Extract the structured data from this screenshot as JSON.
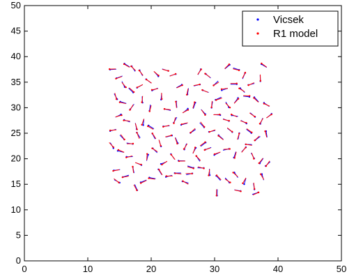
{
  "chart_data": {
    "type": "scatter",
    "title": "",
    "xlabel": "",
    "ylabel": "",
    "xlim": [
      0,
      50
    ],
    "ylim": [
      0,
      50
    ],
    "xticks": [
      0,
      10,
      20,
      30,
      40,
      50
    ],
    "yticks": [
      0,
      5,
      10,
      15,
      20,
      25,
      30,
      35,
      40,
      45,
      50
    ],
    "grid": false,
    "legend_position": "top-right",
    "series": [
      {
        "name": "Vicsek",
        "color": "#0000ff",
        "marker": "dot-with-heading-line",
        "points": [
          {
            "x": 14.0,
            "y": 37.5
          },
          {
            "x": 15.0,
            "y": 36.0
          },
          {
            "x": 16.2,
            "y": 38.3
          },
          {
            "x": 17.2,
            "y": 37.6
          },
          {
            "x": 18.4,
            "y": 36.8
          },
          {
            "x": 15.6,
            "y": 34.6
          },
          {
            "x": 16.8,
            "y": 33.4
          },
          {
            "x": 18.2,
            "y": 34.2
          },
          {
            "x": 14.4,
            "y": 32.2
          },
          {
            "x": 15.6,
            "y": 31.0
          },
          {
            "x": 17.0,
            "y": 30.2
          },
          {
            "x": 18.6,
            "y": 31.6
          },
          {
            "x": 19.6,
            "y": 35.2
          },
          {
            "x": 20.8,
            "y": 36.6
          },
          {
            "x": 22.2,
            "y": 37.4
          },
          {
            "x": 23.4,
            "y": 36.4
          },
          {
            "x": 20.6,
            "y": 33.6
          },
          {
            "x": 21.6,
            "y": 32.2
          },
          {
            "x": 19.8,
            "y": 30.0
          },
          {
            "x": 14.8,
            "y": 28.4
          },
          {
            "x": 16.2,
            "y": 27.4
          },
          {
            "x": 17.6,
            "y": 26.4
          },
          {
            "x": 18.8,
            "y": 27.2
          },
          {
            "x": 20.0,
            "y": 26.2
          },
          {
            "x": 14.0,
            "y": 25.6
          },
          {
            "x": 15.4,
            "y": 24.2
          },
          {
            "x": 16.6,
            "y": 23.0
          },
          {
            "x": 18.0,
            "y": 24.6
          },
          {
            "x": 13.8,
            "y": 22.6
          },
          {
            "x": 15.2,
            "y": 21.4
          },
          {
            "x": 16.6,
            "y": 20.4
          },
          {
            "x": 18.0,
            "y": 19.0
          },
          {
            "x": 19.4,
            "y": 20.2
          },
          {
            "x": 20.6,
            "y": 21.6
          },
          {
            "x": 14.6,
            "y": 17.8
          },
          {
            "x": 16.0,
            "y": 16.6
          },
          {
            "x": 17.2,
            "y": 17.8
          },
          {
            "x": 14.6,
            "y": 15.6
          },
          {
            "x": 17.6,
            "y": 14.4
          },
          {
            "x": 18.8,
            "y": 15.6
          },
          {
            "x": 20.2,
            "y": 16.2
          },
          {
            "x": 21.4,
            "y": 17.4
          },
          {
            "x": 22.8,
            "y": 16.6
          },
          {
            "x": 24.2,
            "y": 17.2
          },
          {
            "x": 25.4,
            "y": 15.4
          },
          {
            "x": 22.0,
            "y": 19.2
          },
          {
            "x": 23.4,
            "y": 20.4
          },
          {
            "x": 24.8,
            "y": 19.6
          },
          {
            "x": 26.2,
            "y": 18.4
          },
          {
            "x": 27.4,
            "y": 20.0
          },
          {
            "x": 21.4,
            "y": 23.0
          },
          {
            "x": 22.8,
            "y": 24.4
          },
          {
            "x": 24.0,
            "y": 23.6
          },
          {
            "x": 25.4,
            "y": 22.4
          },
          {
            "x": 26.8,
            "y": 21.6
          },
          {
            "x": 28.2,
            "y": 22.8
          },
          {
            "x": 22.4,
            "y": 26.4
          },
          {
            "x": 23.8,
            "y": 27.6
          },
          {
            "x": 25.2,
            "y": 26.8
          },
          {
            "x": 26.6,
            "y": 25.4
          },
          {
            "x": 28.0,
            "y": 26.6
          },
          {
            "x": 22.6,
            "y": 29.6
          },
          {
            "x": 24.0,
            "y": 30.6
          },
          {
            "x": 25.4,
            "y": 29.4
          },
          {
            "x": 26.8,
            "y": 30.4
          },
          {
            "x": 28.2,
            "y": 29.2
          },
          {
            "x": 29.6,
            "y": 30.6
          },
          {
            "x": 24.4,
            "y": 34.2
          },
          {
            "x": 25.8,
            "y": 33.2
          },
          {
            "x": 27.2,
            "y": 34.4
          },
          {
            "x": 28.6,
            "y": 33.2
          },
          {
            "x": 27.6,
            "y": 37.0
          },
          {
            "x": 29.0,
            "y": 36.2
          },
          {
            "x": 30.2,
            "y": 34.8
          },
          {
            "x": 31.6,
            "y": 33.6
          },
          {
            "x": 32.0,
            "y": 38.0
          },
          {
            "x": 33.4,
            "y": 37.6
          },
          {
            "x": 34.6,
            "y": 36.2
          },
          {
            "x": 35.8,
            "y": 34.6
          },
          {
            "x": 37.2,
            "y": 35.8
          },
          {
            "x": 37.8,
            "y": 38.2
          },
          {
            "x": 33.0,
            "y": 34.6
          },
          {
            "x": 34.4,
            "y": 33.4
          },
          {
            "x": 30.6,
            "y": 31.8
          },
          {
            "x": 32.0,
            "y": 30.6
          },
          {
            "x": 33.4,
            "y": 31.4
          },
          {
            "x": 35.0,
            "y": 32.2
          },
          {
            "x": 36.6,
            "y": 31.6
          },
          {
            "x": 38.2,
            "y": 30.6
          },
          {
            "x": 30.4,
            "y": 28.6
          },
          {
            "x": 31.8,
            "y": 27.6
          },
          {
            "x": 33.2,
            "y": 28.4
          },
          {
            "x": 34.6,
            "y": 27.2
          },
          {
            "x": 36.0,
            "y": 28.6
          },
          {
            "x": 37.4,
            "y": 27.4
          },
          {
            "x": 38.6,
            "y": 28.4
          },
          {
            "x": 29.6,
            "y": 25.4
          },
          {
            "x": 31.0,
            "y": 24.2
          },
          {
            "x": 32.4,
            "y": 25.6
          },
          {
            "x": 33.8,
            "y": 24.4
          },
          {
            "x": 35.4,
            "y": 25.4
          },
          {
            "x": 36.8,
            "y": 24.0
          },
          {
            "x": 38.2,
            "y": 24.8
          },
          {
            "x": 29.0,
            "y": 22.0
          },
          {
            "x": 30.4,
            "y": 21.0
          },
          {
            "x": 31.8,
            "y": 21.8
          },
          {
            "x": 33.2,
            "y": 20.8
          },
          {
            "x": 34.6,
            "y": 21.8
          },
          {
            "x": 36.0,
            "y": 20.6
          },
          {
            "x": 37.4,
            "y": 19.6
          },
          {
            "x": 38.4,
            "y": 19.0
          },
          {
            "x": 27.8,
            "y": 18.2
          },
          {
            "x": 29.2,
            "y": 17.4
          },
          {
            "x": 30.6,
            "y": 16.2
          },
          {
            "x": 32.0,
            "y": 15.8
          },
          {
            "x": 33.4,
            "y": 16.8
          },
          {
            "x": 34.8,
            "y": 15.6
          },
          {
            "x": 36.2,
            "y": 14.6
          },
          {
            "x": 30.4,
            "y": 13.4
          },
          {
            "x": 33.6,
            "y": 13.8
          },
          {
            "x": 36.4,
            "y": 13.2
          },
          {
            "x": 37.6,
            "y": 16.4
          },
          {
            "x": 35.4,
            "y": 22.8
          },
          {
            "x": 26.0,
            "y": 17.0
          },
          {
            "x": 20.4,
            "y": 24.4
          }
        ]
      },
      {
        "name": "R1 model",
        "color": "#ff0000",
        "marker": "dot-with-heading-line"
      }
    ]
  }
}
